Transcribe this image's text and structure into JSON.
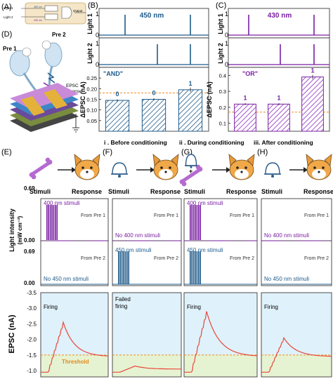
{
  "panel_letters": {
    "A": "(A)",
    "B": "(B)",
    "C": "(C)",
    "D": "(D)",
    "E": "(E)",
    "F": "(F)",
    "G": "(G)",
    "H": "(H)"
  },
  "panelA": {
    "in1": "Light 1",
    "in2": "Light 2",
    "out": "Output",
    "nm1": "450 nm",
    "nm2": "430 nm"
  },
  "panelD": {
    "pre1": "Pre 1",
    "pre2": "Pre 2",
    "epsc": "EPSC",
    "response": "response"
  },
  "panelB": {
    "wavelength": "450 nm",
    "logic": "\"AND\"",
    "light1": "Light 1",
    "light2": "Light 2",
    "ylabel": "ΔEPSC (nA)"
  },
  "panelC": {
    "wavelength": "430 nm",
    "logic": "\"OR\"",
    "light1": "Light 1",
    "light2": "Light 2",
    "ylabel": "ΔEPSC (nA)"
  },
  "stages": {
    "s1": "i . Before conditioning",
    "s2": "ii . During conditioning",
    "s3": "iii. After conditioning"
  },
  "flow": {
    "stimuli": "Stimuli",
    "response": "Response"
  },
  "intensity": {
    "ylabel": "Light intensity",
    "yunit": "(mW cm⁻²)",
    "yt1": "0.69",
    "yt2": "0.00",
    "yt3": "0.69",
    "yt4": "0.00",
    "e400": "400 nm stimuli",
    "e450": "450 nm stimuli",
    "efrom1": "From Pre 1",
    "efrom2": "From Pre 2",
    "eno450": "No 450 nm stimuli",
    "fno400": "No 400 nm stimuli",
    "f450": "450 nm stimuli",
    "ffrom1": "From Pre 1",
    "ffrom2": "From Pre 2",
    "g400": "400 nm stimuli",
    "g450": "450 nm stimuli",
    "gfrom1": "From Pre 1",
    "gfrom2": "From Pre 2",
    "hno400": "No 400 nm stimuli",
    "hno450": "No 450 nm stimuli",
    "hfrom1": "From Pre 1",
    "hfrom2": "From Pre 2"
  },
  "epsc": {
    "ylabel": "EPSC (nA)",
    "ticks": [
      "-3.5",
      "-3.0",
      "-2.5",
      "-2.0",
      "-1.5",
      "-1.0"
    ],
    "firing": "Firing",
    "failed1": "Failed",
    "failed2": "firing",
    "threshold": "Threshold"
  },
  "colors": {
    "blue": "#1f5b8a",
    "purple": "#7a1fa2",
    "red": "#e8473b",
    "orange": "#f08c1e",
    "cyan": "#dff1fa",
    "green": "#e6f3d2"
  },
  "chart_data": [
    {
      "type": "bar",
      "panel": "B",
      "title": "\"AND\"",
      "ylabel": "ΔEPSC (nA)",
      "categories": [
        "0",
        "0",
        "1"
      ],
      "values": [
        0.145,
        0.15,
        0.195
      ],
      "yticks": [
        0.05,
        0.1,
        0.15,
        0.2,
        0.25
      ],
      "ylim": [
        0.0,
        0.3
      ],
      "threshold": 0.18
    },
    {
      "type": "bar",
      "panel": "C",
      "title": "\"OR\"",
      "ylabel": "ΔEPSC (nA)",
      "categories": [
        "1",
        "1",
        "1"
      ],
      "values": [
        0.22,
        0.22,
        0.39
      ],
      "yticks": [
        0.1,
        0.2,
        0.3,
        0.4
      ],
      "ylim": [
        0.05,
        0.45
      ],
      "threshold": 0.17
    }
  ]
}
